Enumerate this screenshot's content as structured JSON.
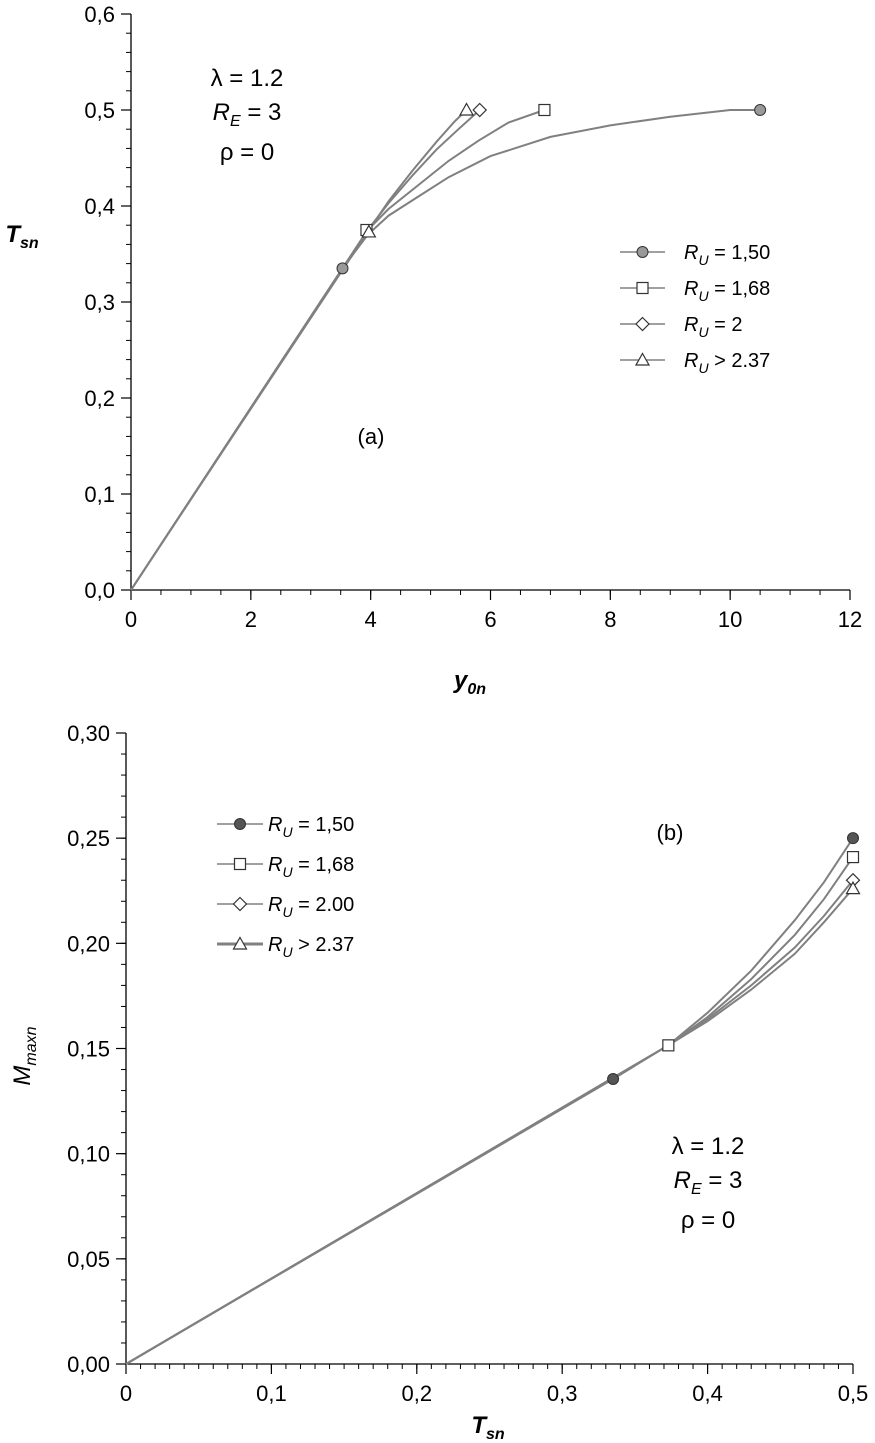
{
  "chart_data": [
    {
      "type": "line",
      "panel_label": "(a)",
      "xlabel": "y",
      "xlabel_sub": "0n",
      "ylabel": "T",
      "ylabel_sub": "sn",
      "xlim": [
        0,
        12
      ],
      "ylim": [
        0,
        0.6
      ],
      "xticks": [
        "0",
        "2",
        "4",
        "6",
        "8",
        "10",
        "12"
      ],
      "yticks": [
        "0,0",
        "0,1",
        "0,2",
        "0,3",
        "0,4",
        "0,5",
        "0,6"
      ],
      "grid": false,
      "legend_position": "right",
      "annotation": {
        "lambda": "λ = 1.2",
        "re_main": "R",
        "re_sub": "E",
        "re_val": " = 3",
        "rho": "ρ = 0"
      },
      "series": [
        {
          "name": "R_U = 1,50",
          "legend_main": "R",
          "legend_sub": "U",
          "legend_val": " = 1,50",
          "marker": "circle-filled",
          "color": "#808080",
          "x": [
            0,
            3.53,
            3.95,
            4.3,
            4.8,
            5.3,
            6.0,
            7.0,
            8.0,
            9.0,
            10.0,
            10.5
          ],
          "y": [
            0,
            0.335,
            0.37,
            0.39,
            0.41,
            0.43,
            0.452,
            0.472,
            0.484,
            0.493,
            0.5,
            0.5
          ],
          "endpoints": [
            [
              3.53,
              0.335
            ],
            [
              10.5,
              0.5
            ]
          ]
        },
        {
          "name": "R_U = 1,68",
          "legend_main": "R",
          "legend_sub": "U",
          "legend_val": " = 1,68",
          "marker": "square-open",
          "color": "#808080",
          "x": [
            0,
            3.95,
            4.3,
            4.8,
            5.3,
            5.8,
            6.3,
            6.9
          ],
          "y": [
            0,
            0.375,
            0.397,
            0.422,
            0.447,
            0.468,
            0.487,
            0.5
          ],
          "endpoints": [
            [
              3.93,
              0.375
            ],
            [
              6.9,
              0.5
            ]
          ]
        },
        {
          "name": "R_U = 2",
          "legend_main": "R",
          "legend_sub": "U",
          "legend_val": " = 2",
          "marker": "diamond-open",
          "color": "#808080",
          "x": [
            0,
            3.95,
            4.3,
            4.7,
            5.1,
            5.5,
            5.82
          ],
          "y": [
            0,
            0.375,
            0.403,
            0.432,
            0.459,
            0.482,
            0.5
          ],
          "endpoints": [
            [
              5.82,
              0.5
            ]
          ]
        },
        {
          "name": "R_U > 2.37",
          "legend_main": "R",
          "legend_sub": "U",
          "legend_val": " > 2.37",
          "marker": "triangle-open",
          "color": "#808080",
          "x": [
            0,
            3.95,
            4.3,
            4.7,
            5.1,
            5.4,
            5.6
          ],
          "y": [
            0,
            0.373,
            0.405,
            0.437,
            0.467,
            0.488,
            0.5
          ],
          "endpoints": [
            [
              3.97,
              0.373
            ],
            [
              5.6,
              0.5
            ]
          ]
        }
      ]
    },
    {
      "type": "line",
      "panel_label": "(b)",
      "xlabel": "T",
      "xlabel_sub": "sn",
      "ylabel": "M",
      "ylabel_sub": "maxn",
      "xlim": [
        0,
        0.5
      ],
      "ylim": [
        0,
        0.3
      ],
      "xticks": [
        "0",
        "0,1",
        "0,2",
        "0,3",
        "0,4",
        "0,5"
      ],
      "yticks": [
        "0,00",
        "0,05",
        "0,10",
        "0,15",
        "0,20",
        "0,25",
        "0,30"
      ],
      "grid": false,
      "legend_position": "top-left",
      "annotation": {
        "lambda": "λ = 1.2",
        "re_main": "R",
        "re_sub": "E",
        "re_val": " = 3",
        "rho": "ρ = 0"
      },
      "series": [
        {
          "name": "R_U = 1,50",
          "legend_main": "R",
          "legend_sub": "U",
          "legend_val": " = 1,50",
          "marker": "circle-filled-dark",
          "color": "#808080",
          "x": [
            0,
            0.335,
            0.373,
            0.4,
            0.43,
            0.46,
            0.48,
            0.5
          ],
          "y": [
            0,
            0.1355,
            0.1515,
            0.167,
            0.187,
            0.211,
            0.229,
            0.25
          ],
          "endpoints": [
            [
              0.335,
              0.1355
            ],
            [
              0.5,
              0.25
            ]
          ]
        },
        {
          "name": "R_U = 1,68",
          "legend_main": "R",
          "legend_sub": "U",
          "legend_val": " = 1,68",
          "marker": "square-open",
          "color": "#808080",
          "x": [
            0,
            0.373,
            0.4,
            0.43,
            0.46,
            0.48,
            0.5
          ],
          "y": [
            0,
            0.1515,
            0.165,
            0.183,
            0.204,
            0.221,
            0.241
          ],
          "endpoints": [
            [
              0.373,
              0.1515
            ],
            [
              0.5,
              0.241
            ]
          ]
        },
        {
          "name": "R_U = 2.00",
          "legend_main": "R",
          "legend_sub": "U",
          "legend_val": " = 2.00",
          "marker": "diamond-open",
          "color": "#808080",
          "x": [
            0,
            0.373,
            0.4,
            0.43,
            0.46,
            0.48,
            0.5
          ],
          "y": [
            0,
            0.1515,
            0.164,
            0.18,
            0.198,
            0.213,
            0.23
          ],
          "endpoints": [
            [
              0.5,
              0.23
            ]
          ]
        },
        {
          "name": "R_U > 2.37",
          "legend_main": "R",
          "legend_sub": "U",
          "legend_val": " > 2.37",
          "marker": "triangle-open",
          "color": "#808080",
          "x": [
            0,
            0.373,
            0.4,
            0.43,
            0.46,
            0.48,
            0.5
          ],
          "y": [
            0,
            0.1515,
            0.163,
            0.178,
            0.195,
            0.21,
            0.226
          ],
          "endpoints": [
            [
              0.5,
              0.226
            ]
          ]
        }
      ]
    }
  ]
}
